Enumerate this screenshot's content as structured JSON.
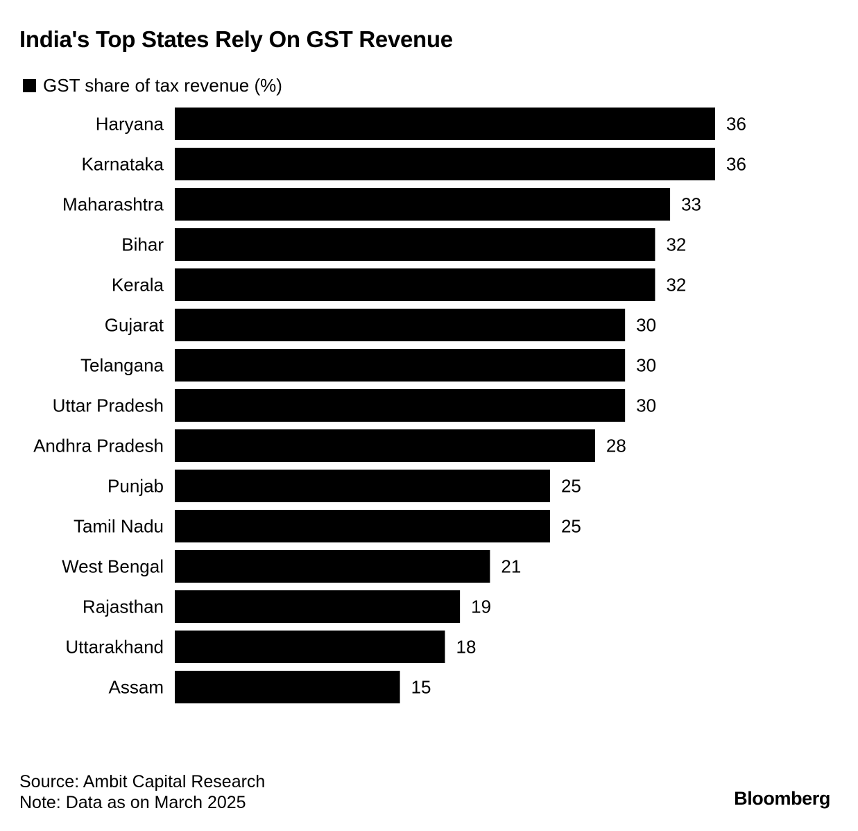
{
  "chart_data": {
    "type": "bar",
    "orientation": "horizontal",
    "title": "India's Top States Rely On GST Revenue",
    "legend": {
      "position": "top-left",
      "entries": [
        "GST share of tax revenue (%)"
      ]
    },
    "categories": [
      "Haryana",
      "Karnataka",
      "Maharashtra",
      "Bihar",
      "Kerala",
      "Gujarat",
      "Telangana",
      "Uttar Pradesh",
      "Andhra Pradesh",
      "Punjab",
      "Tamil Nadu",
      "West Bengal",
      "Rajasthan",
      "Uttarakhand",
      "Assam"
    ],
    "series": [
      {
        "name": "GST share of tax revenue (%)",
        "values": [
          36,
          36,
          33,
          32,
          32,
          30,
          30,
          30,
          28,
          25,
          25,
          21,
          19,
          18,
          15
        ],
        "color": "#000000"
      }
    ],
    "data_labels": [
      "36",
      "36",
      "33",
      "32",
      "32",
      "30",
      "30",
      "30",
      "28",
      "25",
      "25",
      "21",
      "19",
      "18",
      "15"
    ],
    "xlim": [
      0,
      36
    ],
    "grid": false
  },
  "footer": {
    "source": "Source: Ambit Capital Research",
    "note": "Note: Data as on March 2025"
  },
  "brand": "Bloomberg"
}
